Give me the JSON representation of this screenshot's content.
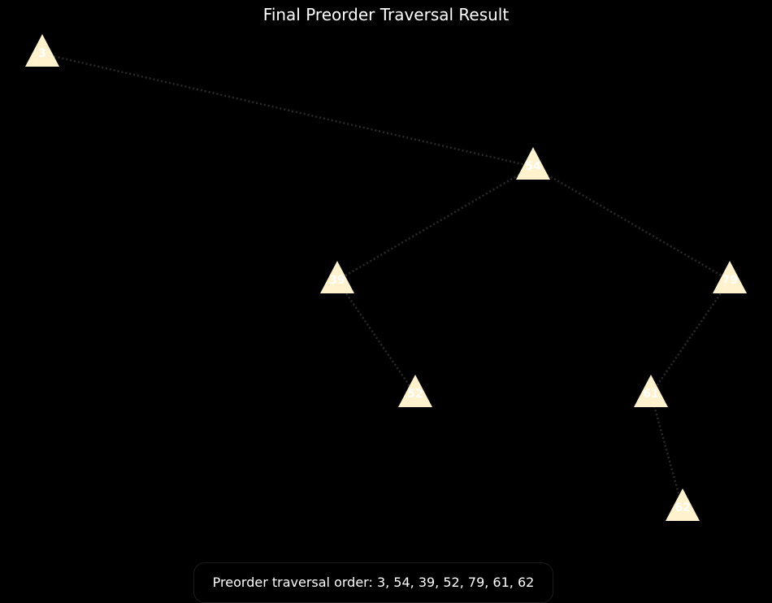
{
  "title": "Final Preorder Traversal Result",
  "caption": "Preorder traversal order: 3, 54, 39, 52, 79, 61, 62",
  "colors": {
    "background": "#000000",
    "node_fill": "#fff2cc",
    "edge": "#2a2a2a",
    "label": "#ffffff"
  },
  "tree": {
    "nodes": [
      {
        "id": "n3",
        "label": "3"
      },
      {
        "id": "n54",
        "label": "54"
      },
      {
        "id": "n39",
        "label": "39"
      },
      {
        "id": "n79",
        "label": "79"
      },
      {
        "id": "n52",
        "label": "52"
      },
      {
        "id": "n61",
        "label": "61"
      },
      {
        "id": "n62",
        "label": "62"
      }
    ],
    "edges": [
      {
        "from": "n3",
        "to": "n54"
      },
      {
        "from": "n54",
        "to": "n39"
      },
      {
        "from": "n54",
        "to": "n79"
      },
      {
        "from": "n39",
        "to": "n52"
      },
      {
        "from": "n79",
        "to": "n61"
      },
      {
        "from": "n61",
        "to": "n62"
      }
    ]
  }
}
